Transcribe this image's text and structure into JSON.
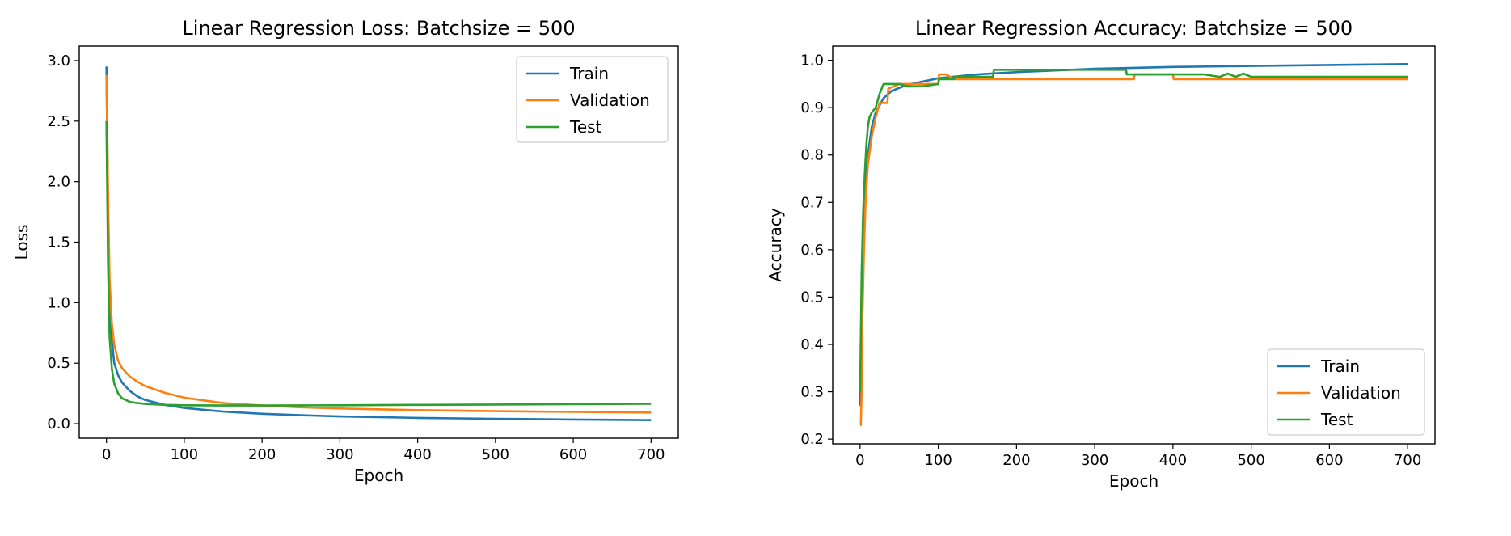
{
  "chart_data": [
    {
      "type": "line",
      "title": "Linear Regression Loss: Batchsize = 500",
      "xlabel": "Epoch",
      "ylabel": "Loss",
      "xlim": [
        -35,
        735
      ],
      "ylim": [
        -0.12,
        3.12
      ],
      "xticks": [
        0,
        100,
        200,
        300,
        400,
        500,
        600,
        700
      ],
      "xtick_labels": [
        "0",
        "100",
        "200",
        "300",
        "400",
        "500",
        "600",
        "700"
      ],
      "yticks": [
        0.0,
        0.5,
        1.0,
        1.5,
        2.0,
        2.5,
        3.0
      ],
      "ytick_labels": [
        "0.0",
        "0.5",
        "1.0",
        "1.5",
        "2.0",
        "2.5",
        "3.0"
      ],
      "grid": false,
      "legend_position": "top-right",
      "series": [
        {
          "name": "Train",
          "color": "#1f77b4",
          "x": [
            0,
            2,
            4,
            7,
            10,
            15,
            20,
            30,
            40,
            50,
            75,
            100,
            150,
            200,
            250,
            300,
            400,
            500,
            600,
            700
          ],
          "y": [
            2.95,
            1.8,
            1.05,
            0.68,
            0.5,
            0.4,
            0.34,
            0.27,
            0.225,
            0.195,
            0.155,
            0.13,
            0.1,
            0.082,
            0.07,
            0.06,
            0.048,
            0.04,
            0.034,
            0.029
          ]
        },
        {
          "name": "Validation",
          "color": "#ff7f0e",
          "x": [
            0,
            2,
            4,
            7,
            10,
            15,
            20,
            30,
            40,
            50,
            75,
            100,
            150,
            200,
            250,
            300,
            400,
            500,
            600,
            700
          ],
          "y": [
            2.88,
            1.9,
            1.2,
            0.82,
            0.65,
            0.52,
            0.46,
            0.39,
            0.345,
            0.31,
            0.255,
            0.215,
            0.17,
            0.15,
            0.135,
            0.125,
            0.112,
            0.103,
            0.097,
            0.092
          ]
        },
        {
          "name": "Test",
          "color": "#2ca02c",
          "x": [
            0,
            2,
            4,
            7,
            10,
            15,
            20,
            30,
            40,
            50,
            75,
            100,
            150,
            200,
            250,
            300,
            400,
            500,
            600,
            700
          ],
          "y": [
            2.5,
            1.35,
            0.72,
            0.45,
            0.33,
            0.25,
            0.21,
            0.18,
            0.17,
            0.163,
            0.155,
            0.152,
            0.15,
            0.15,
            0.151,
            0.152,
            0.155,
            0.158,
            0.161,
            0.164
          ]
        }
      ]
    },
    {
      "type": "line",
      "title": "Linear Regression Accuracy: Batchsize = 500",
      "xlabel": "Epoch",
      "ylabel": "Accuracy",
      "xlim": [
        -35,
        735
      ],
      "ylim": [
        0.19,
        1.03
      ],
      "xticks": [
        0,
        100,
        200,
        300,
        400,
        500,
        600,
        700
      ],
      "xtick_labels": [
        "0",
        "100",
        "200",
        "300",
        "400",
        "500",
        "600",
        "700"
      ],
      "yticks": [
        0.2,
        0.3,
        0.4,
        0.5,
        0.6,
        0.7,
        0.8,
        0.9,
        1.0
      ],
      "ytick_labels": [
        "0.2",
        "0.3",
        "0.4",
        "0.5",
        "0.6",
        "0.7",
        "0.8",
        "0.9",
        "1.0"
      ],
      "grid": false,
      "legend_position": "bottom-right",
      "series": [
        {
          "name": "Train",
          "color": "#1f77b4",
          "x": [
            0,
            2,
            4,
            7,
            10,
            15,
            20,
            30,
            40,
            60,
            80,
            100,
            150,
            200,
            300,
            400,
            500,
            600,
            700
          ],
          "y": [
            0.27,
            0.48,
            0.64,
            0.75,
            0.8,
            0.86,
            0.89,
            0.92,
            0.935,
            0.948,
            0.955,
            0.962,
            0.97,
            0.975,
            0.982,
            0.986,
            0.988,
            0.99,
            0.992
          ]
        },
        {
          "name": "Validation",
          "color": "#ff7f0e",
          "x": [
            0,
            1,
            2,
            3,
            5,
            7,
            10,
            15,
            20,
            25,
            30,
            35,
            36,
            50,
            60,
            80,
            100,
            101,
            110,
            120,
            125,
            150,
            160,
            350,
            351,
            400,
            401,
            500,
            700
          ],
          "y": [
            0.23,
            0.23,
            0.3,
            0.46,
            0.6,
            0.7,
            0.78,
            0.84,
            0.88,
            0.91,
            0.91,
            0.91,
            0.94,
            0.95,
            0.95,
            0.95,
            0.95,
            0.97,
            0.97,
            0.96,
            0.96,
            0.96,
            0.96,
            0.96,
            0.97,
            0.97,
            0.96,
            0.96,
            0.96
          ]
        },
        {
          "name": "Test",
          "color": "#2ca02c",
          "x": [
            0,
            2,
            4,
            6,
            8,
            10,
            12,
            15,
            20,
            25,
            30,
            35,
            40,
            50,
            60,
            80,
            100,
            101,
            120,
            121,
            170,
            171,
            340,
            341,
            440,
            460,
            470,
            480,
            490,
            500,
            700
          ],
          "y": [
            0.3,
            0.55,
            0.68,
            0.76,
            0.82,
            0.86,
            0.88,
            0.89,
            0.9,
            0.93,
            0.95,
            0.95,
            0.95,
            0.95,
            0.945,
            0.945,
            0.95,
            0.96,
            0.96,
            0.965,
            0.965,
            0.98,
            0.98,
            0.97,
            0.97,
            0.965,
            0.972,
            0.965,
            0.972,
            0.965,
            0.965
          ]
        }
      ]
    }
  ]
}
